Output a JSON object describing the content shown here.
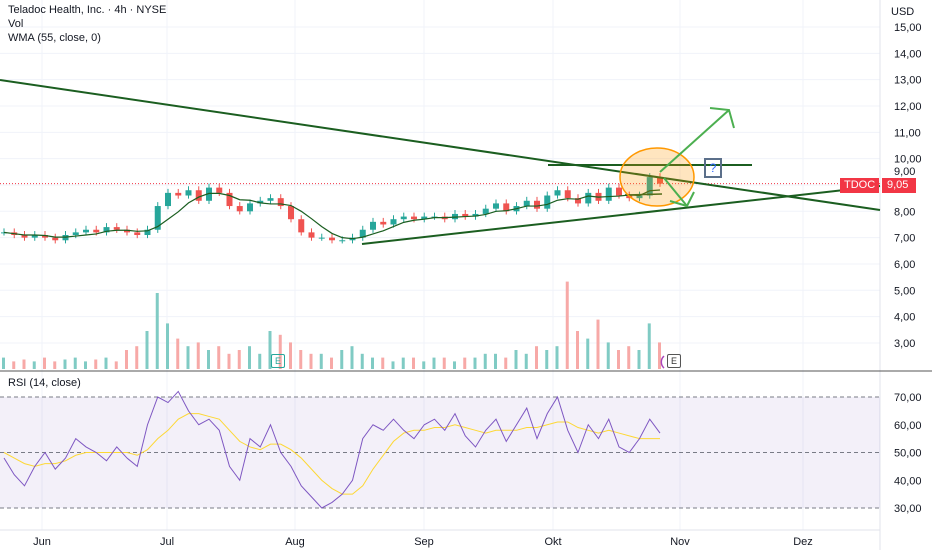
{
  "header": {
    "title": "Teladoc Health, Inc. · 4h · NYSE",
    "vol": "Vol",
    "wma": "WMA (55, close, 0)",
    "currency": "USD"
  },
  "rsi_label": "RSI (14, close)",
  "price_tag": {
    "symbol": "TDOC",
    "value": "9,05",
    "color": "#f23645"
  },
  "colors": {
    "up": "#26a69a",
    "down": "#ef5350",
    "trend": "#1b5e20",
    "arrow": "#4caf50",
    "wma": "#1b5e20",
    "rsi": "#7e57c2",
    "rsi_ma": "#fdd835",
    "ellipse": "#ff9800"
  },
  "markers": {
    "earnings": "E",
    "question": "?"
  },
  "chart_data": [
    {
      "type": "candlestick",
      "title": "Teladoc Health, Inc. · 4h · NYSE",
      "ylim": [
        2,
        15.5
      ],
      "y_ticks": [
        "15,00",
        "14,00",
        "13,00",
        "12,00",
        "11,00",
        "10,00",
        "9,00",
        "8,00",
        "7,00",
        "6,00",
        "5,00",
        "4,00",
        "3,00"
      ],
      "x_ticks": [
        "Jun",
        "Jul",
        "Aug",
        "Sep",
        "Okt",
        "Nov",
        "Dez"
      ],
      "closes": [
        7.2,
        7.1,
        7.0,
        7.1,
        7.0,
        6.9,
        7.1,
        7.2,
        7.3,
        7.2,
        7.4,
        7.3,
        7.2,
        7.1,
        7.3,
        8.2,
        8.7,
        8.6,
        8.8,
        8.4,
        8.9,
        8.7,
        8.2,
        8.0,
        8.3,
        8.4,
        8.5,
        8.2,
        7.7,
        7.2,
        7.0,
        7.0,
        6.9,
        6.9,
        7.0,
        7.3,
        7.6,
        7.5,
        7.7,
        7.8,
        7.7,
        7.8,
        7.8,
        7.7,
        7.9,
        7.8,
        7.9,
        8.1,
        8.3,
        8.0,
        8.2,
        8.4,
        8.1,
        8.6,
        8.8,
        8.5,
        8.3,
        8.7,
        8.4,
        8.9,
        8.6,
        8.5,
        8.6,
        9.3,
        9.05
      ],
      "last": 9.05
    },
    {
      "type": "bar",
      "title": "Vol",
      "values": [
        0.3,
        0.2,
        0.25,
        0.2,
        0.3,
        0.2,
        0.25,
        0.3,
        0.2,
        0.25,
        0.3,
        0.2,
        0.5,
        0.6,
        1.0,
        2.0,
        1.2,
        0.8,
        0.6,
        0.7,
        0.5,
        0.6,
        0.4,
        0.5,
        0.6,
        0.4,
        1.0,
        0.9,
        0.7,
        0.5,
        0.4,
        0.4,
        0.3,
        0.5,
        0.6,
        0.4,
        0.3,
        0.3,
        0.2,
        0.3,
        0.3,
        0.2,
        0.3,
        0.3,
        0.2,
        0.3,
        0.3,
        0.4,
        0.4,
        0.3,
        0.5,
        0.4,
        0.6,
        0.5,
        0.6,
        2.3,
        1.0,
        0.8,
        1.3,
        0.7,
        0.5,
        0.6,
        0.5,
        1.2,
        0.7
      ]
    },
    {
      "type": "line",
      "title": "RSI (14, close)",
      "ylim": [
        25,
        75
      ],
      "y_ticks": [
        "70,00",
        "60,00",
        "50,00",
        "40,00",
        "30,00"
      ],
      "rsi": [
        48,
        42,
        38,
        45,
        50,
        44,
        48,
        55,
        52,
        50,
        47,
        52,
        48,
        45,
        60,
        70,
        68,
        72,
        65,
        60,
        62,
        58,
        45,
        40,
        55,
        52,
        60,
        50,
        45,
        38,
        34,
        30,
        32,
        35,
        40,
        55,
        60,
        58,
        62,
        58,
        55,
        60,
        62,
        58,
        64,
        56,
        52,
        58,
        62,
        54,
        60,
        66,
        55,
        64,
        70,
        58,
        50,
        60,
        55,
        62,
        52,
        50,
        55,
        62,
        57
      ],
      "rsi_ma": [
        50,
        48,
        46,
        45,
        46,
        46,
        47,
        49,
        50,
        50,
        50,
        50,
        50,
        49,
        51,
        55,
        58,
        62,
        64,
        64,
        63,
        62,
        58,
        54,
        52,
        51,
        53,
        53,
        51,
        48,
        44,
        40,
        37,
        35,
        35,
        38,
        44,
        49,
        54,
        57,
        58,
        58,
        59,
        59,
        60,
        59,
        58,
        57,
        58,
        58,
        58,
        59,
        59,
        60,
        61,
        61,
        59,
        58,
        57,
        58,
        57,
        56,
        55,
        55,
        55
      ]
    }
  ]
}
